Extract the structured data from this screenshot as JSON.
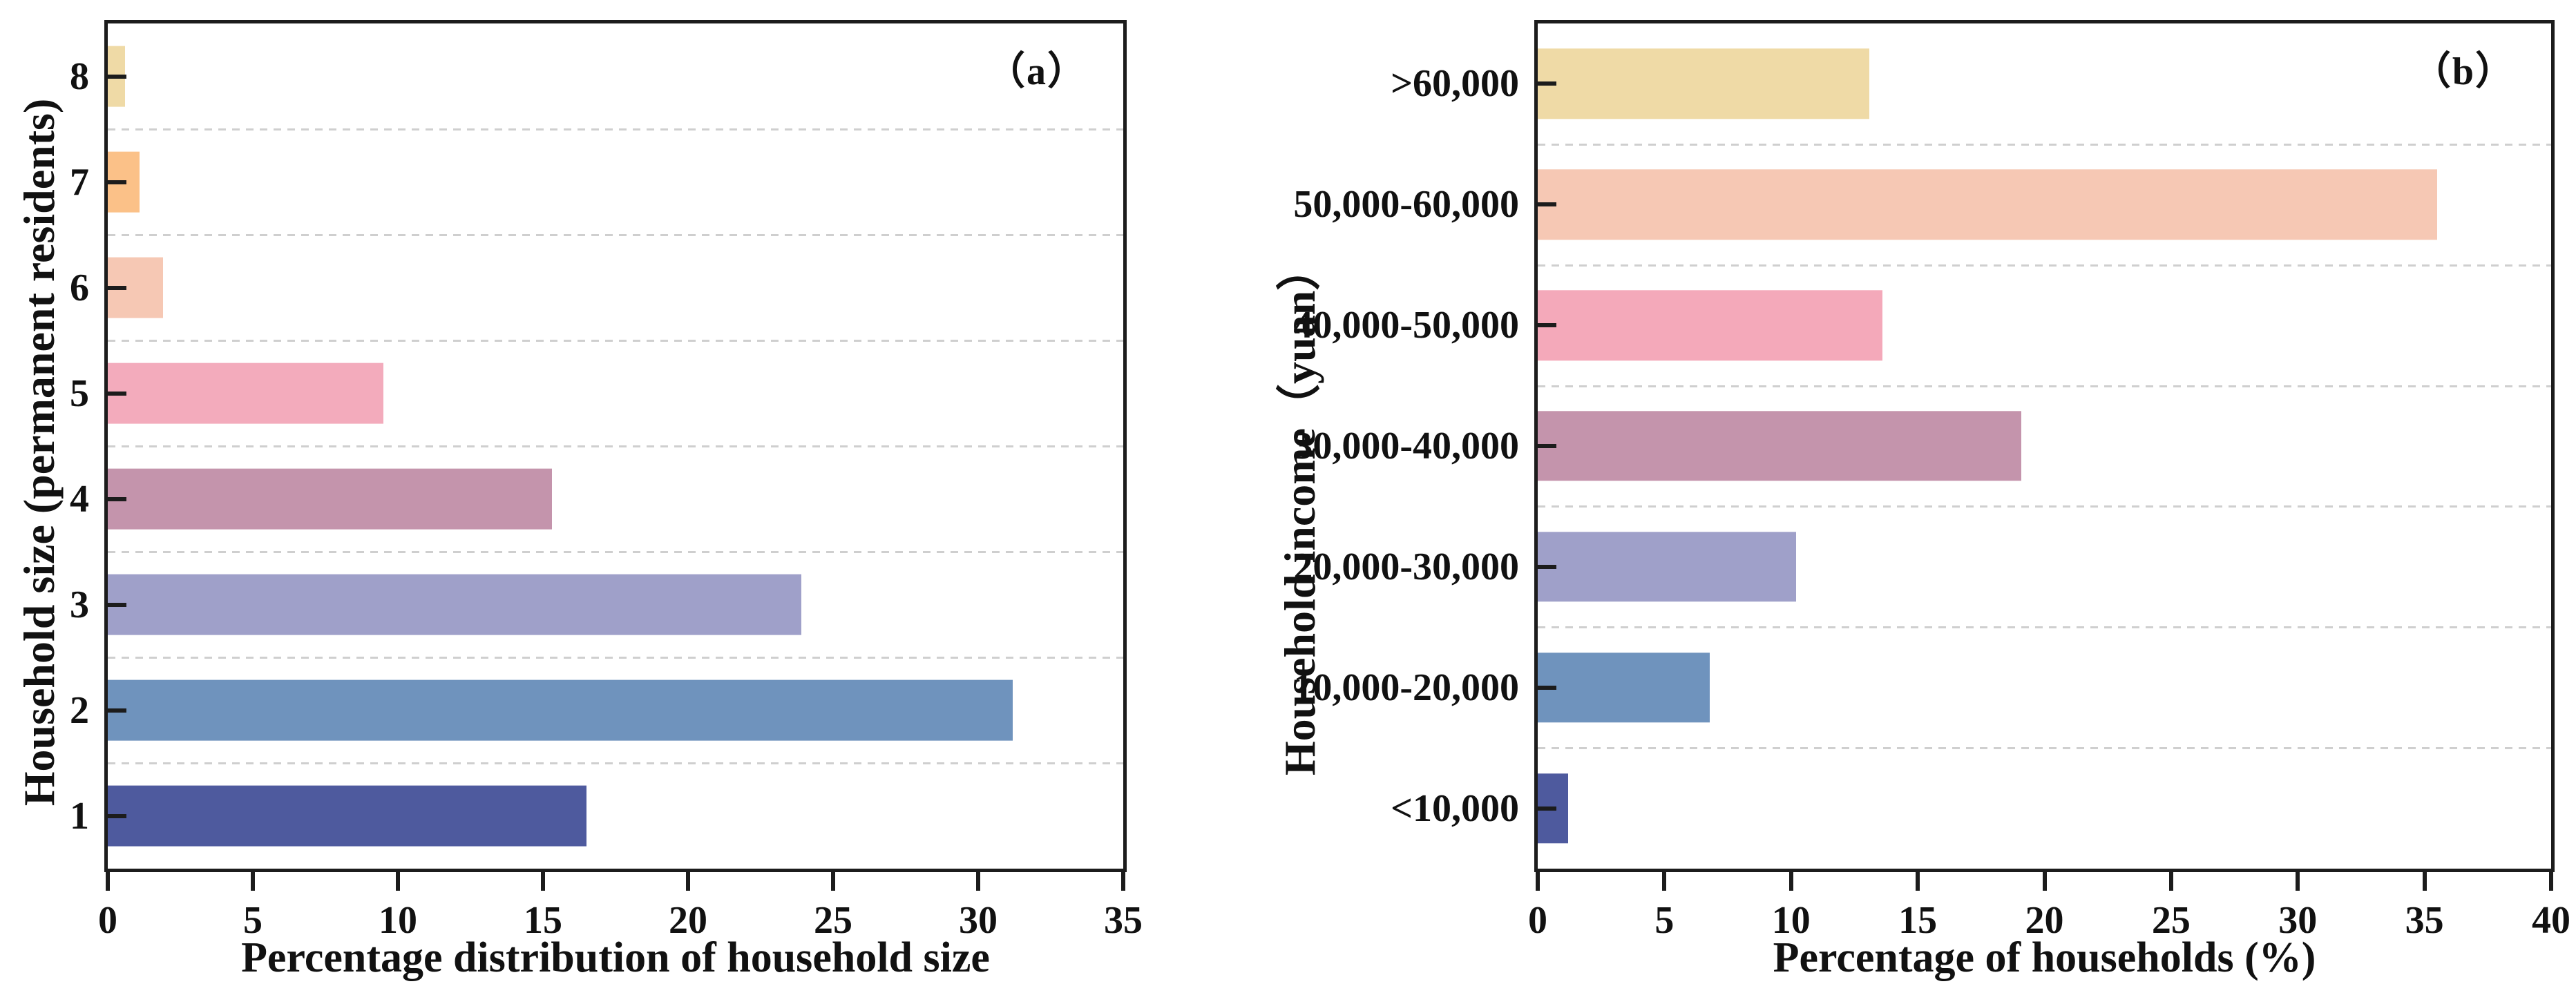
{
  "figure": {
    "background": "#ffffff",
    "axis_color": "#1c1c1c",
    "grid_color": "#cfcfcf",
    "text_color": "#111111"
  },
  "chart_data": [
    {
      "type": "bar",
      "orientation": "horizontal",
      "panel_marker": "（a）",
      "xlabel": "Percentage distribution of household size",
      "ylabel": "Household size (permanent residents)",
      "xlim": [
        0,
        35
      ],
      "xticks": [
        0,
        5,
        10,
        15,
        20,
        25,
        30,
        35
      ],
      "grid": "dashed-horizontal-between-categories",
      "legend": "none",
      "categories": [
        "1",
        "2",
        "3",
        "4",
        "5",
        "6",
        "7",
        "8"
      ],
      "values": [
        16.5,
        31.2,
        23.9,
        15.3,
        9.5,
        1.9,
        1.1,
        0.6
      ],
      "bar_colors": [
        "#4e5a9e",
        "#6f93bd",
        "#9fa0c9",
        "#c494ac",
        "#f3abbc",
        "#f6c8b4",
        "#fbc188",
        "#efdaa6"
      ]
    },
    {
      "type": "bar",
      "orientation": "horizontal",
      "panel_marker": "（b）",
      "xlabel": "Percentage of households (%)",
      "ylabel": "Household income（yuan）",
      "xlim": [
        0,
        40
      ],
      "xticks": [
        0,
        5,
        10,
        15,
        20,
        25,
        30,
        35,
        40
      ],
      "grid": "dashed-horizontal-between-categories",
      "legend": "none",
      "categories": [
        "<10,000",
        "10,000-20,000",
        "20,000-30,000",
        "30,000-40,000",
        "40,000-50,000",
        "50,000-60,000",
        ">60,000"
      ],
      "values": [
        1.2,
        6.8,
        10.2,
        19.1,
        13.6,
        35.5,
        13.1
      ],
      "bar_colors": [
        "#4e5a9e",
        "#6f93bd",
        "#9fa0c9",
        "#c494ac",
        "#f4a9ba",
        "#f6c8b4",
        "#efdaa6"
      ]
    }
  ]
}
